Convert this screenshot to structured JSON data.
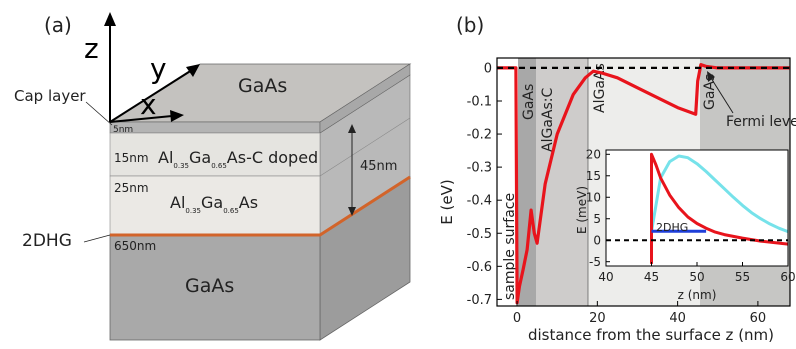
{
  "panel_a": {
    "label": "(a)",
    "axes": {
      "z": "z",
      "y": "y",
      "x": "x"
    },
    "cap_layer": "Cap layer",
    "top_layer": "GaAs",
    "layers": [
      {
        "thickness": "5nm",
        "name": ""
      },
      {
        "thickness": "15nm",
        "name": "Al",
        "sub1": "0.35",
        "mid": "Ga",
        "sub2": "0.65",
        "tail": "As-C doped"
      },
      {
        "thickness": "25nm",
        "name": "Al",
        "sub1": "0.35",
        "mid": "Ga",
        "sub2": "0.65",
        "tail": "As"
      },
      {
        "thickness": "650nm",
        "name": "GaAs"
      }
    ],
    "total_thickness": "45nm",
    "two_dhg": "2DHG"
  },
  "panel_b": {
    "label": "(b)",
    "region_labels": [
      "sample surface",
      "GaAs",
      "AlGaAs:C",
      "AlGaAs",
      "GaAs"
    ],
    "fermi_label": "Fermi level"
  },
  "chart_data": [
    {
      "type": "line",
      "title": "",
      "xlabel": "distance from the surface z (nm)",
      "ylabel": "E (eV)",
      "xlim": [
        -5,
        68
      ],
      "ylim": [
        -0.72,
        0.03
      ],
      "xticks": [
        0,
        20,
        40,
        60
      ],
      "yticks": [
        0,
        -0.1,
        -0.2,
        -0.3,
        -0.4,
        -0.5,
        -0.6,
        -0.7
      ],
      "grid": false,
      "series": [
        {
          "color": "#e8141c",
          "x": [
            -5,
            -0.3,
            0,
            0.6,
            1.5,
            2.5,
            3.5,
            4.3,
            5.0,
            7,
            10,
            14,
            17,
            19,
            21,
            25,
            30,
            35,
            40,
            44.5,
            45,
            45.8,
            47,
            50,
            55,
            60,
            65,
            68
          ],
          "y": [
            0,
            0,
            -0.71,
            -0.66,
            -0.61,
            -0.55,
            -0.43,
            -0.5,
            -0.53,
            -0.35,
            -0.2,
            -0.08,
            -0.03,
            -0.01,
            -0.015,
            -0.03,
            -0.06,
            -0.09,
            -0.12,
            -0.14,
            -0.04,
            0.01,
            0.005,
            0,
            0,
            0,
            0,
            0
          ]
        },
        {
          "color": "#000000",
          "dashed": true,
          "x": [
            -5,
            68
          ],
          "y": [
            0,
            0
          ]
        }
      ]
    },
    {
      "type": "line",
      "title": "",
      "xlabel": "z (nm)",
      "ylabel": "E (meV)",
      "xlim": [
        40,
        60
      ],
      "ylim": [
        -6,
        21
      ],
      "xticks": [
        40,
        45,
        50,
        55,
        60
      ],
      "yticks": [
        -5,
        0,
        5,
        10,
        15,
        20
      ],
      "annotation": "2DHG",
      "series": [
        {
          "color": "#76e2ea",
          "x": [
            45,
            46,
            47,
            48,
            49,
            50,
            51,
            52,
            53,
            54,
            55,
            56,
            57,
            58,
            59,
            60
          ],
          "y": [
            2,
            14.5,
            18.3,
            19.6,
            19.2,
            17.8,
            16,
            14,
            12,
            10,
            8.1,
            6.4,
            5,
            3.8,
            2.8,
            2
          ]
        },
        {
          "color": "#e8141c",
          "x": [
            45,
            45,
            45.5,
            46,
            47,
            48,
            49,
            50,
            51,
            52,
            53,
            55,
            57,
            60
          ],
          "y": [
            -5.5,
            20,
            17.5,
            14.5,
            10.5,
            7.6,
            5.4,
            3.9,
            2.8,
            1.9,
            1.3,
            0.5,
            -0.2,
            -0.9
          ]
        },
        {
          "color": "#000000",
          "dashed": true,
          "x": [
            40,
            60
          ],
          "y": [
            0,
            0
          ]
        },
        {
          "color": "#1f3fd9",
          "x": [
            45,
            51
          ],
          "y": [
            2.1,
            2.1
          ]
        }
      ]
    }
  ]
}
